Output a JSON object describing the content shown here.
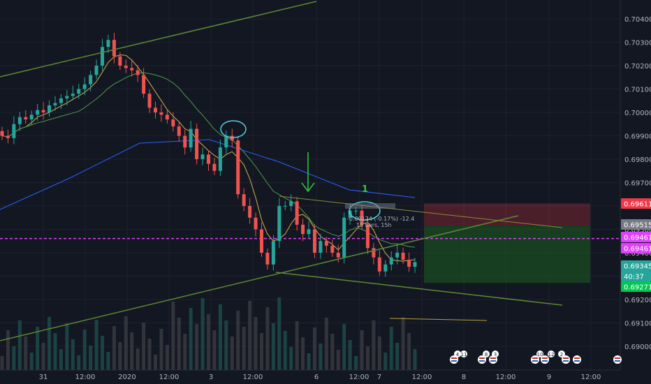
{
  "chart_data": {
    "type": "candlestick",
    "y_axis": {
      "ticks": [
        "0.70400",
        "0.70300",
        "0.70200",
        "0.70100",
        "0.70000",
        "0.69900",
        "0.69800",
        "0.69700",
        "0.69600",
        "0.69500",
        "0.69400",
        "0.69300",
        "0.69200",
        "0.69100",
        "0.69000"
      ],
      "range": [
        0.6896,
        0.7049
      ]
    },
    "x_axis": {
      "ticks": [
        "31",
        "12:00",
        "2020",
        "12:00",
        "3",
        "12:00",
        "6",
        "12:00",
        "7",
        "12:00",
        "8",
        "12:00",
        "9",
        "12:00"
      ]
    },
    "price_badges": [
      {
        "label": "0.69611",
        "value": 0.69611,
        "color": "#f23645"
      },
      {
        "label": "0.69515",
        "value": 0.69515,
        "color": "#787b86"
      },
      {
        "label": "0.69461",
        "value": 0.69461,
        "color": "#e040fb"
      },
      {
        "label": "0.69461",
        "value": 0.69461,
        "color": "#e040fb"
      },
      {
        "label": "0.69345",
        "value": 0.69345,
        "color": "#26a69a"
      },
      {
        "label": "40:37",
        "value": 0.69305,
        "color": "#26a69a"
      },
      {
        "label": "0.69271",
        "value": 0.69271,
        "color": "#00c853"
      }
    ],
    "price_series": {
      "description": "Hourly close approximations",
      "close": [
        0.699,
        0.6989,
        0.6995,
        0.6998,
        0.6997,
        0.6999,
        0.7001,
        0.7,
        0.7003,
        0.7004,
        0.7006,
        0.7007,
        0.7008,
        0.701,
        0.7012,
        0.7016,
        0.702,
        0.7028,
        0.7031,
        0.7024,
        0.702,
        0.7019,
        0.7018,
        0.7016,
        0.7008,
        0.7002,
        0.7,
        0.6999,
        0.6997,
        0.6994,
        0.699,
        0.6985,
        0.6993,
        0.698,
        0.6982,
        0.6978,
        0.6975,
        0.6985,
        0.699,
        0.6988,
        0.6965,
        0.696,
        0.6955,
        0.695,
        0.694,
        0.6935,
        0.6945,
        0.696,
        0.696,
        0.6962,
        0.6952,
        0.6948,
        0.695,
        0.694,
        0.6945,
        0.6943,
        0.694,
        0.6938,
        0.6955,
        0.6958,
        0.6958,
        0.6952,
        0.6942,
        0.6938,
        0.6932,
        0.6935,
        0.6938,
        0.694,
        0.6937,
        0.6934,
        0.6936
      ]
    },
    "trade_box": {
      "entry": 0.69515,
      "stop": 0.69611,
      "target": 0.69271
    },
    "measure_label": "-0.00124 (-0.17%) -12.4",
    "measure_sub": "15 bars, 15h",
    "wave_label": "1",
    "magenta_level": 0.69461
  },
  "events": {
    "group1": [
      "4",
      "11"
    ],
    "group2": [
      "8",
      "3"
    ],
    "group3": [
      "10",
      "12",
      "2"
    ]
  },
  "colors": {
    "up": "#26a69a",
    "down": "#ef5350",
    "ma_fast": "#d8b04a",
    "ma_slow": "#4c9c4c",
    "ma_long": "#2962ff",
    "trendline": "#5b8a32",
    "magenta": "#e040fb"
  }
}
